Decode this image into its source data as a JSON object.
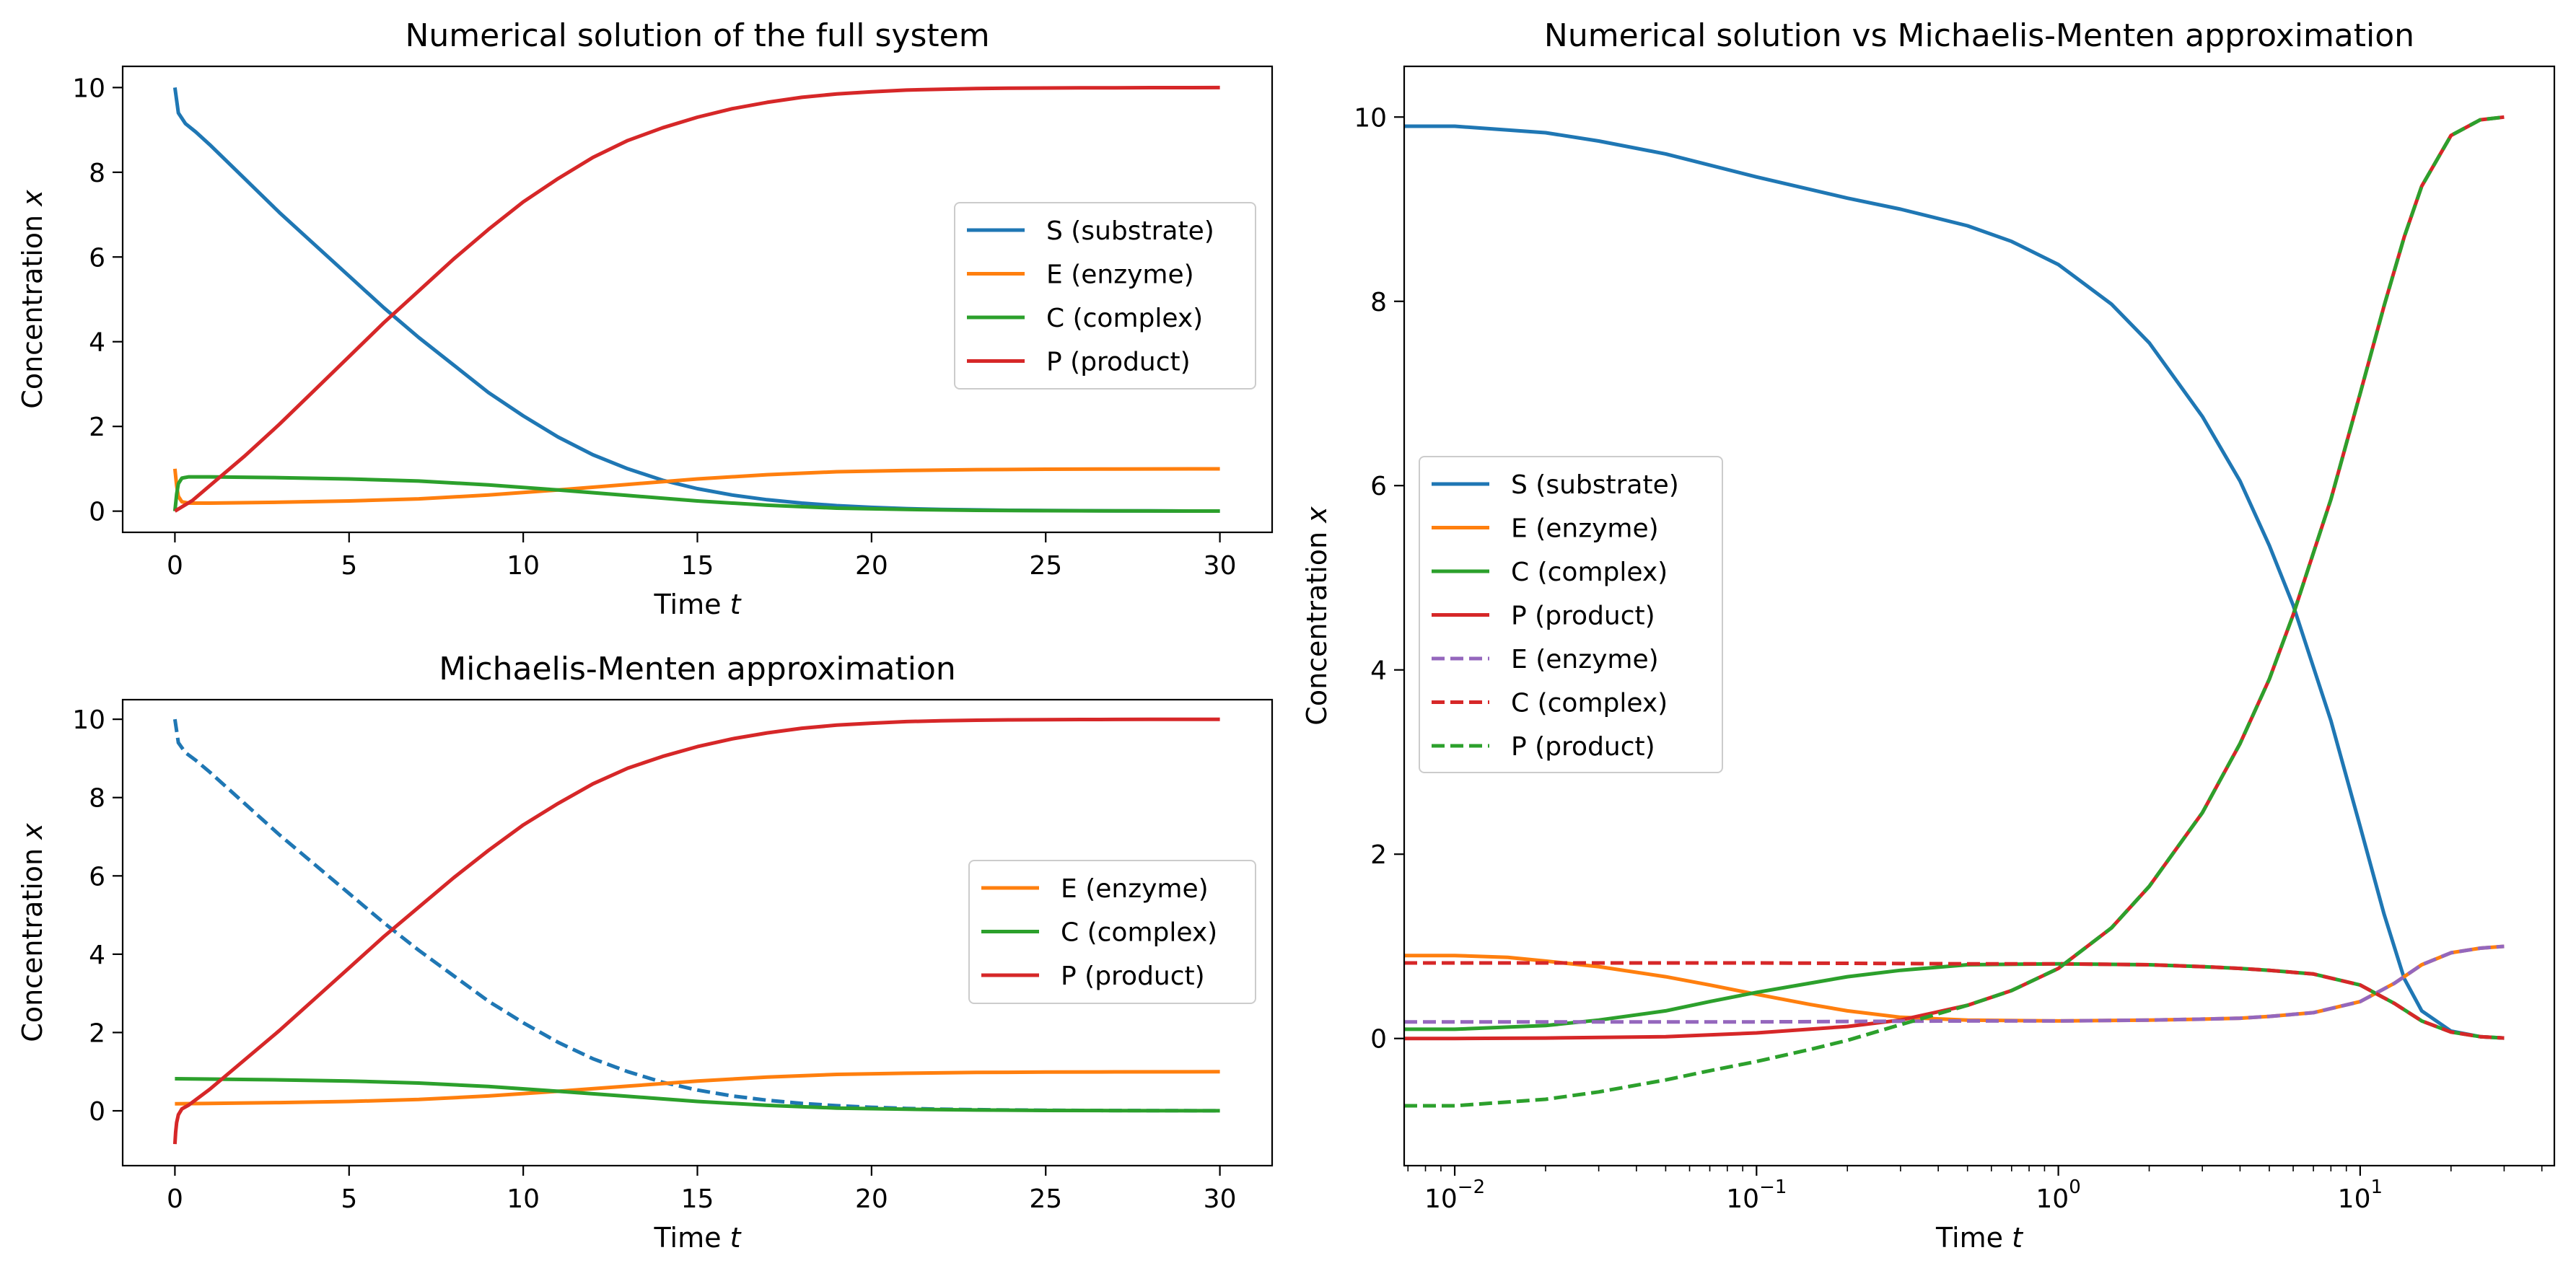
{
  "figure": {
    "colors": {
      "S": "#1f77b4",
      "E": "#ff7f0e",
      "C": "#2ca02c",
      "P": "#d62728",
      "E_mm": "#9467bd",
      "C_mm": "#d62728",
      "P_mm": "#2ca02c"
    }
  },
  "chart_data": [
    {
      "type": "line",
      "title": "Numerical solution of the full system",
      "xlabel_text": "Time ",
      "xlabel_var": "t",
      "ylabel_text": "Concentration ",
      "ylabel_var": "x",
      "xscale": "linear",
      "xlim": [
        -1.5,
        31.5
      ],
      "ylim": [
        -0.5,
        10.5
      ],
      "xticks": [
        0,
        5,
        10,
        15,
        20,
        25,
        30
      ],
      "xticklabels": [
        "0",
        "5",
        "10",
        "15",
        "20",
        "25",
        "30"
      ],
      "yticks": [
        0,
        2,
        4,
        6,
        8,
        10
      ],
      "yticklabels": [
        "0",
        "2",
        "4",
        "6",
        "8",
        "10"
      ],
      "grid": false,
      "legend_placement": "center-right",
      "legend": [
        "S (substrate)",
        "E (enzyme)",
        "C (complex)",
        "P (product)"
      ],
      "series": [
        {
          "name": "S (substrate)",
          "color": "S",
          "dash": "solid",
          "x": [
            0,
            0.1,
            0.3,
            0.6,
            1,
            2,
            3,
            4,
            5,
            6,
            7,
            8,
            9,
            10,
            11,
            12,
            13,
            14,
            15,
            16,
            17,
            18,
            19,
            20,
            21,
            22,
            23,
            24,
            25,
            26,
            27,
            28,
            29,
            30
          ],
          "y": [
            10,
            9.4,
            9.15,
            8.95,
            8.65,
            7.85,
            7.05,
            6.3,
            5.55,
            4.8,
            4.1,
            3.45,
            2.8,
            2.25,
            1.75,
            1.33,
            1.0,
            0.73,
            0.53,
            0.38,
            0.27,
            0.19,
            0.13,
            0.09,
            0.06,
            0.04,
            0.03,
            0.02,
            0.015,
            0.01,
            0.007,
            0.005,
            0.003,
            0.002
          ]
        },
        {
          "name": "E (enzyme)",
          "color": "E",
          "dash": "solid",
          "x": [
            0,
            0.05,
            0.1,
            0.2,
            0.4,
            1,
            3,
            5,
            7,
            9,
            11,
            13,
            15,
            17,
            19,
            21,
            23,
            25,
            27,
            30
          ],
          "y": [
            1.0,
            0.6,
            0.35,
            0.22,
            0.19,
            0.19,
            0.21,
            0.24,
            0.29,
            0.38,
            0.5,
            0.63,
            0.76,
            0.86,
            0.93,
            0.96,
            0.98,
            0.99,
            0.995,
            0.998
          ]
        },
        {
          "name": "C (complex)",
          "color": "C",
          "dash": "solid",
          "x": [
            0,
            0.05,
            0.1,
            0.2,
            0.4,
            1,
            3,
            5,
            7,
            9,
            11,
            13,
            15,
            17,
            19,
            21,
            23,
            25,
            27,
            30
          ],
          "y": [
            0,
            0.4,
            0.65,
            0.78,
            0.81,
            0.81,
            0.79,
            0.76,
            0.71,
            0.62,
            0.5,
            0.37,
            0.24,
            0.14,
            0.07,
            0.04,
            0.02,
            0.01,
            0.005,
            0.002
          ]
        },
        {
          "name": "P (product)",
          "color": "P",
          "dash": "solid",
          "x": [
            0,
            0.5,
            1,
            2,
            3,
            4,
            5,
            6,
            7,
            8,
            9,
            10,
            11,
            12,
            13,
            14,
            15,
            16,
            17,
            18,
            19,
            20,
            21,
            22,
            23,
            24,
            25,
            26,
            27,
            28,
            29,
            30
          ],
          "y": [
            0,
            0.25,
            0.6,
            1.3,
            2.05,
            2.85,
            3.65,
            4.45,
            5.2,
            5.95,
            6.65,
            7.3,
            7.85,
            8.35,
            8.75,
            9.05,
            9.3,
            9.5,
            9.65,
            9.77,
            9.85,
            9.9,
            9.94,
            9.96,
            9.975,
            9.985,
            9.99,
            9.993,
            9.995,
            9.997,
            9.998,
            9.999
          ]
        }
      ]
    },
    {
      "type": "line",
      "title": "Michaelis-Menten approximation",
      "xlabel_text": "Time ",
      "xlabel_var": "t",
      "ylabel_text": "Concentration ",
      "ylabel_var": "x",
      "xscale": "linear",
      "xlim": [
        -1.5,
        31.5
      ],
      "ylim": [
        -1.4,
        10.5
      ],
      "xticks": [
        0,
        5,
        10,
        15,
        20,
        25,
        30
      ],
      "xticklabels": [
        "0",
        "5",
        "10",
        "15",
        "20",
        "25",
        "30"
      ],
      "yticks": [
        0,
        2,
        4,
        6,
        8,
        10
      ],
      "yticklabels": [
        "0",
        "2",
        "4",
        "6",
        "8",
        "10"
      ],
      "grid": false,
      "legend_placement": "center-right",
      "legend": [
        "E (enzyme)",
        "C (complex)",
        "P (product)"
      ],
      "series": [
        {
          "name": "",
          "color": "S",
          "dash": "dashed",
          "x": [
            0,
            0.1,
            0.3,
            0.6,
            1,
            2,
            3,
            4,
            5,
            6,
            7,
            8,
            9,
            10,
            11,
            12,
            13,
            14,
            15,
            16,
            17,
            18,
            19,
            20,
            21,
            22,
            23,
            24,
            25,
            26,
            27,
            28,
            29,
            30
          ],
          "y": [
            10,
            9.4,
            9.15,
            8.95,
            8.65,
            7.85,
            7.05,
            6.3,
            5.55,
            4.8,
            4.1,
            3.45,
            2.8,
            2.25,
            1.75,
            1.33,
            1.0,
            0.73,
            0.53,
            0.38,
            0.27,
            0.19,
            0.13,
            0.09,
            0.06,
            0.04,
            0.03,
            0.02,
            0.015,
            0.01,
            0.007,
            0.005,
            0.003,
            0.002
          ]
        },
        {
          "name": "E (enzyme)",
          "color": "E",
          "dash": "solid",
          "x": [
            0,
            1,
            3,
            5,
            7,
            9,
            11,
            13,
            15,
            17,
            19,
            21,
            23,
            25,
            27,
            30
          ],
          "y": [
            0.18,
            0.19,
            0.21,
            0.24,
            0.29,
            0.38,
            0.5,
            0.63,
            0.76,
            0.86,
            0.93,
            0.96,
            0.98,
            0.99,
            0.995,
            0.998
          ]
        },
        {
          "name": "C (complex)",
          "color": "C",
          "dash": "solid",
          "x": [
            0,
            1,
            3,
            5,
            7,
            9,
            11,
            13,
            15,
            17,
            19,
            21,
            23,
            25,
            27,
            30
          ],
          "y": [
            0.82,
            0.81,
            0.79,
            0.76,
            0.71,
            0.62,
            0.5,
            0.37,
            0.24,
            0.14,
            0.07,
            0.04,
            0.02,
            0.01,
            0.005,
            0.002
          ]
        },
        {
          "name": "P (product)",
          "color": "P",
          "dash": "solid",
          "x": [
            0,
            0.02,
            0.05,
            0.1,
            0.2,
            0.4,
            0.7,
            1,
            2,
            3,
            4,
            5,
            6,
            7,
            8,
            9,
            10,
            11,
            12,
            13,
            14,
            15,
            16,
            17,
            18,
            19,
            20,
            21,
            22,
            23,
            24,
            25,
            26,
            27,
            28,
            29,
            30
          ],
          "y": [
            -0.85,
            -0.55,
            -0.3,
            -0.1,
            0.05,
            0.15,
            0.35,
            0.55,
            1.3,
            2.05,
            2.85,
            3.65,
            4.45,
            5.2,
            5.95,
            6.65,
            7.3,
            7.85,
            8.35,
            8.75,
            9.05,
            9.3,
            9.5,
            9.65,
            9.77,
            9.85,
            9.9,
            9.94,
            9.96,
            9.975,
            9.985,
            9.99,
            9.993,
            9.995,
            9.997,
            9.998,
            9.999
          ]
        }
      ]
    },
    {
      "type": "line",
      "title": "Numerical solution vs Michaelis-Menten approximation",
      "xlabel_text": "Time ",
      "xlabel_var": "t",
      "ylabel_text": "Concentration ",
      "ylabel_var": "x",
      "xscale": "log",
      "xlim": [
        0.0068,
        44
      ],
      "ylim": [
        -1.38,
        10.55
      ],
      "xticks": [
        0.01,
        0.1,
        1,
        10
      ],
      "xtick_base": "10",
      "xtick_exponents": [
        "−2",
        "−1",
        "0",
        "1"
      ],
      "yticks": [
        0,
        2,
        4,
        6,
        8,
        10
      ],
      "yticklabels": [
        "0",
        "2",
        "4",
        "6",
        "8",
        "10"
      ],
      "grid": false,
      "legend_placement": "center-left",
      "legend": [
        "S (substrate)",
        "E (enzyme)",
        "C (complex)",
        "P (product)",
        "E (enzyme)",
        "C (complex)",
        "P (product)"
      ],
      "series": [
        {
          "name": "S (substrate)",
          "color": "S",
          "dash": "solid",
          "x": [
            0.0068,
            0.01,
            0.02,
            0.03,
            0.05,
            0.1,
            0.2,
            0.3,
            0.5,
            0.7,
            1,
            1.5,
            2,
            3,
            4,
            5,
            6,
            8,
            10,
            12,
            14,
            16,
            20,
            25,
            30
          ],
          "y": [
            9.9,
            9.9,
            9.83,
            9.74,
            9.6,
            9.35,
            9.12,
            9.0,
            8.82,
            8.65,
            8.4,
            7.97,
            7.55,
            6.75,
            6.05,
            5.35,
            4.7,
            3.45,
            2.3,
            1.35,
            0.65,
            0.3,
            0.08,
            0.02,
            0.005
          ]
        },
        {
          "name": "E (enzyme)",
          "color": "E",
          "dash": "solid",
          "x": [
            0.0068,
            0.01,
            0.015,
            0.02,
            0.03,
            0.05,
            0.07,
            0.1,
            0.15,
            0.2,
            0.3,
            0.5,
            1,
            2,
            3,
            4,
            5,
            7,
            10,
            13,
            16,
            20,
            25,
            30
          ],
          "y": [
            0.9,
            0.9,
            0.88,
            0.84,
            0.78,
            0.67,
            0.58,
            0.48,
            0.37,
            0.3,
            0.23,
            0.2,
            0.19,
            0.2,
            0.21,
            0.22,
            0.24,
            0.28,
            0.4,
            0.6,
            0.8,
            0.93,
            0.98,
            1.0
          ]
        },
        {
          "name": "C (complex)",
          "color": "C",
          "dash": "solid",
          "x": [
            0.0068,
            0.01,
            0.02,
            0.03,
            0.05,
            0.07,
            0.1,
            0.15,
            0.2,
            0.3,
            0.5,
            1,
            2,
            3,
            4,
            5,
            7,
            10,
            13,
            16,
            20,
            25,
            30
          ],
          "y": [
            0.1,
            0.1,
            0.14,
            0.2,
            0.3,
            0.4,
            0.5,
            0.6,
            0.67,
            0.74,
            0.8,
            0.81,
            0.8,
            0.78,
            0.76,
            0.74,
            0.7,
            0.58,
            0.38,
            0.19,
            0.07,
            0.02,
            0.005
          ]
        },
        {
          "name": "P (product)",
          "color": "P",
          "dash": "solid",
          "x": [
            0.0068,
            0.01,
            0.02,
            0.05,
            0.1,
            0.2,
            0.3,
            0.5,
            0.7,
            1,
            1.5,
            2,
            3,
            4,
            5,
            6,
            8,
            10,
            12,
            14,
            16,
            20,
            25,
            30
          ],
          "y": [
            0.0,
            0.0,
            0.005,
            0.02,
            0.06,
            0.13,
            0.2,
            0.36,
            0.52,
            0.76,
            1.2,
            1.65,
            2.45,
            3.2,
            3.9,
            4.6,
            5.85,
            7.0,
            7.95,
            8.7,
            9.25,
            9.8,
            9.97,
            10.0
          ]
        },
        {
          "name": "E (enzyme)",
          "color": "E_mm",
          "dash": "dashed",
          "x": [
            0.0068,
            0.1,
            0.5,
            1,
            2,
            3,
            4,
            5,
            7,
            10,
            13,
            16,
            20,
            25,
            30
          ],
          "y": [
            0.18,
            0.18,
            0.19,
            0.19,
            0.2,
            0.21,
            0.22,
            0.24,
            0.28,
            0.4,
            0.6,
            0.8,
            0.93,
            0.98,
            1.0
          ]
        },
        {
          "name": "C (complex)",
          "color": "C_mm",
          "dash": "dashed",
          "x": [
            0.0068,
            0.1,
            0.5,
            1,
            2,
            3,
            4,
            5,
            7,
            10,
            13,
            16,
            20,
            25,
            30
          ],
          "y": [
            0.82,
            0.82,
            0.81,
            0.81,
            0.8,
            0.78,
            0.76,
            0.74,
            0.7,
            0.58,
            0.38,
            0.19,
            0.07,
            0.02,
            0.005
          ]
        },
        {
          "name": "P (product)",
          "color": "P_mm",
          "dash": "dashed",
          "x": [
            0.0068,
            0.01,
            0.02,
            0.03,
            0.05,
            0.07,
            0.1,
            0.15,
            0.2,
            0.3,
            0.5,
            0.7,
            1,
            1.5,
            2,
            3,
            4,
            5,
            6,
            8,
            10,
            12,
            14,
            16,
            20,
            25,
            30
          ],
          "y": [
            -0.73,
            -0.73,
            -0.66,
            -0.58,
            -0.45,
            -0.35,
            -0.25,
            -0.12,
            -0.02,
            0.15,
            0.36,
            0.52,
            0.76,
            1.2,
            1.65,
            2.45,
            3.2,
            3.9,
            4.6,
            5.85,
            7.0,
            7.95,
            8.7,
            9.25,
            9.8,
            9.97,
            10.0
          ]
        }
      ]
    }
  ]
}
